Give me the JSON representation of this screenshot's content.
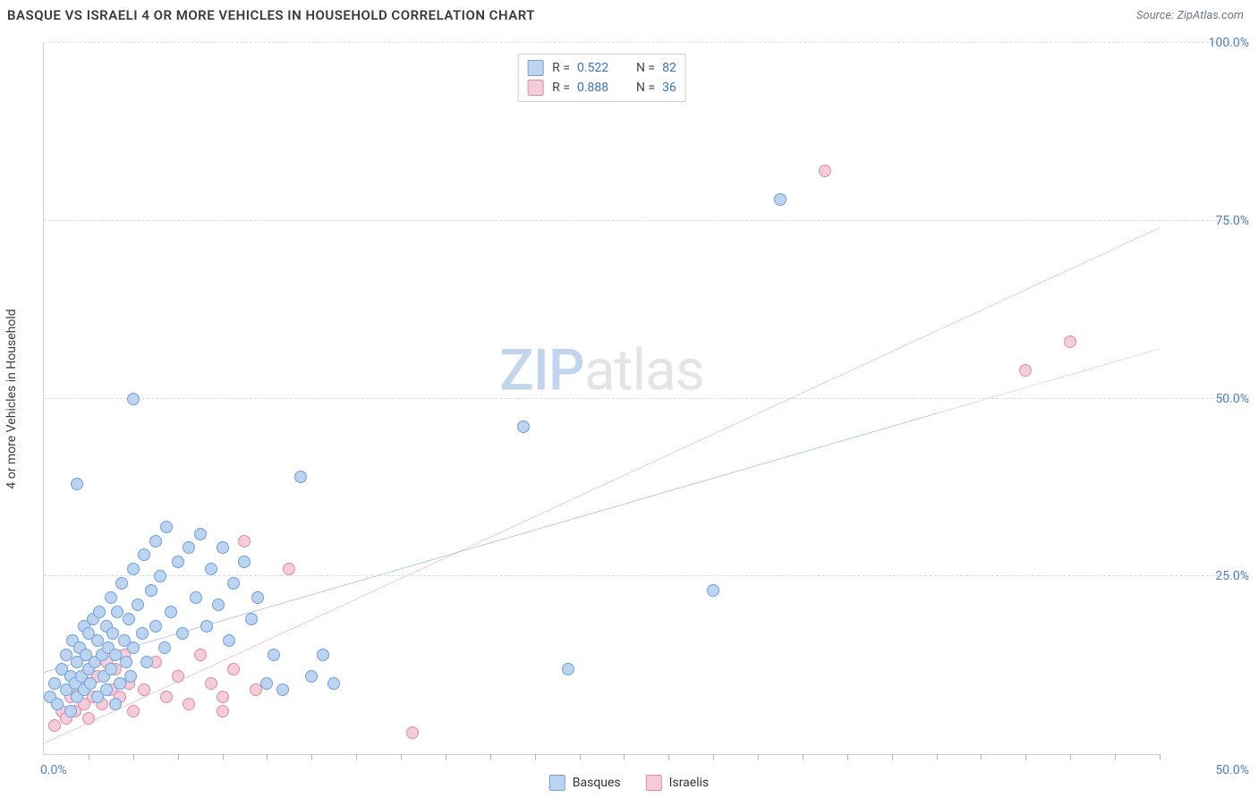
{
  "header": {
    "title": "BASQUE VS ISRAELI 4 OR MORE VEHICLES IN HOUSEHOLD CORRELATION CHART",
    "source": "Source: ZipAtlas.com"
  },
  "watermark": {
    "part1": "ZIP",
    "part2": "atlas"
  },
  "chart": {
    "type": "scatter",
    "y_label": "4 or more Vehicles in Household",
    "xlim": [
      0,
      50
    ],
    "ylim": [
      0,
      100
    ],
    "x_ticks_minor": [
      2,
      4,
      6,
      8,
      10,
      12,
      14,
      16,
      18,
      20,
      22,
      24,
      26,
      28,
      30,
      32,
      34,
      36,
      38,
      40,
      42,
      44,
      46,
      48,
      50
    ],
    "y_grid": [
      25,
      50,
      75,
      100
    ],
    "y_tick_labels": [
      "25.0%",
      "50.0%",
      "75.0%",
      "100.0%"
    ],
    "x_min_label": "0.0%",
    "x_max_label": "50.0%",
    "background_color": "#ffffff",
    "grid_color": "#dcdcdc",
    "axis_color": "#d0d0d0",
    "tick_label_color": "#4a7ec7",
    "marker_radius": 7,
    "marker_stroke_width": 1,
    "series": {
      "basques": {
        "label": "Basques",
        "fill": "#bcd4f0",
        "stroke": "#6f9fdb",
        "line_color": "#2f6fc7",
        "R": "0.522",
        "N": "82",
        "trend": {
          "x1": 0,
          "y1": 11.5,
          "x2": 50,
          "y2": 57,
          "dash_after_x": 40
        },
        "points": [
          [
            0.3,
            8
          ],
          [
            0.5,
            10
          ],
          [
            0.6,
            7
          ],
          [
            0.8,
            12
          ],
          [
            1.0,
            9
          ],
          [
            1.0,
            14
          ],
          [
            1.2,
            11
          ],
          [
            1.2,
            6
          ],
          [
            1.3,
            16
          ],
          [
            1.4,
            10
          ],
          [
            1.5,
            13
          ],
          [
            1.5,
            8
          ],
          [
            1.6,
            15
          ],
          [
            1.7,
            11
          ],
          [
            1.8,
            18
          ],
          [
            1.8,
            9
          ],
          [
            1.9,
            14
          ],
          [
            2.0,
            12
          ],
          [
            2.0,
            17
          ],
          [
            2.1,
            10
          ],
          [
            2.2,
            19
          ],
          [
            2.3,
            13
          ],
          [
            2.4,
            16
          ],
          [
            2.4,
            8
          ],
          [
            2.5,
            20
          ],
          [
            2.6,
            14
          ],
          [
            2.7,
            11
          ],
          [
            2.8,
            18
          ],
          [
            2.9,
            15
          ],
          [
            3.0,
            22
          ],
          [
            3.0,
            12
          ],
          [
            3.1,
            17
          ],
          [
            3.2,
            14
          ],
          [
            3.3,
            20
          ],
          [
            3.4,
            10
          ],
          [
            3.5,
            24
          ],
          [
            3.6,
            16
          ],
          [
            3.7,
            13
          ],
          [
            3.8,
            19
          ],
          [
            3.9,
            11
          ],
          [
            4.0,
            26
          ],
          [
            4.0,
            15
          ],
          [
            4.2,
            21
          ],
          [
            4.4,
            17
          ],
          [
            4.5,
            28
          ],
          [
            4.6,
            13
          ],
          [
            4.8,
            23
          ],
          [
            5.0,
            30
          ],
          [
            5.0,
            18
          ],
          [
            5.2,
            25
          ],
          [
            5.4,
            15
          ],
          [
            5.5,
            32
          ],
          [
            5.7,
            20
          ],
          [
            6.0,
            27
          ],
          [
            6.2,
            17
          ],
          [
            6.5,
            29
          ],
          [
            6.8,
            22
          ],
          [
            7.0,
            31
          ],
          [
            7.3,
            18
          ],
          [
            7.5,
            26
          ],
          [
            7.8,
            21
          ],
          [
            8.0,
            29
          ],
          [
            8.3,
            16
          ],
          [
            8.5,
            24
          ],
          [
            9.0,
            27
          ],
          [
            9.3,
            19
          ],
          [
            9.6,
            22
          ],
          [
            10.0,
            10
          ],
          [
            10.3,
            14
          ],
          [
            10.7,
            9
          ],
          [
            11.5,
            39
          ],
          [
            12.0,
            11
          ],
          [
            12.5,
            14
          ],
          [
            13.0,
            10
          ],
          [
            4.0,
            50
          ],
          [
            1.5,
            38
          ],
          [
            21.5,
            46
          ],
          [
            23.5,
            12
          ],
          [
            30.0,
            23
          ],
          [
            33.0,
            78
          ],
          [
            3.2,
            7
          ],
          [
            2.8,
            9
          ]
        ]
      },
      "israelis": {
        "label": "Israelis",
        "fill": "#f5cdd8",
        "stroke": "#e08aa3",
        "line_color": "#e15b82",
        "R": "0.888",
        "N": "36",
        "trend": {
          "x1": 0,
          "y1": 1.5,
          "x2": 50,
          "y2": 74,
          "dash_after_x": 50
        },
        "points": [
          [
            0.5,
            4
          ],
          [
            0.8,
            6
          ],
          [
            1.0,
            5
          ],
          [
            1.2,
            8
          ],
          [
            1.4,
            6
          ],
          [
            1.6,
            9
          ],
          [
            1.8,
            7
          ],
          [
            2.0,
            10
          ],
          [
            2.0,
            5
          ],
          [
            2.2,
            8
          ],
          [
            2.4,
            11
          ],
          [
            2.6,
            7
          ],
          [
            2.8,
            13
          ],
          [
            3.0,
            9
          ],
          [
            3.2,
            12
          ],
          [
            3.4,
            8
          ],
          [
            3.6,
            14
          ],
          [
            3.8,
            10
          ],
          [
            4.0,
            6
          ],
          [
            4.5,
            9
          ],
          [
            5.0,
            13
          ],
          [
            5.5,
            8
          ],
          [
            6.0,
            11
          ],
          [
            6.5,
            7
          ],
          [
            7.0,
            14
          ],
          [
            7.5,
            10
          ],
          [
            8.0,
            8
          ],
          [
            8.5,
            12
          ],
          [
            9.0,
            30
          ],
          [
            9.5,
            9
          ],
          [
            11.0,
            26
          ],
          [
            16.5,
            3
          ],
          [
            35.0,
            82
          ],
          [
            44.0,
            54
          ],
          [
            46.0,
            58
          ],
          [
            8.0,
            6
          ]
        ]
      }
    },
    "legend_top": {
      "r_label": "R =",
      "n_label": "N ="
    }
  }
}
